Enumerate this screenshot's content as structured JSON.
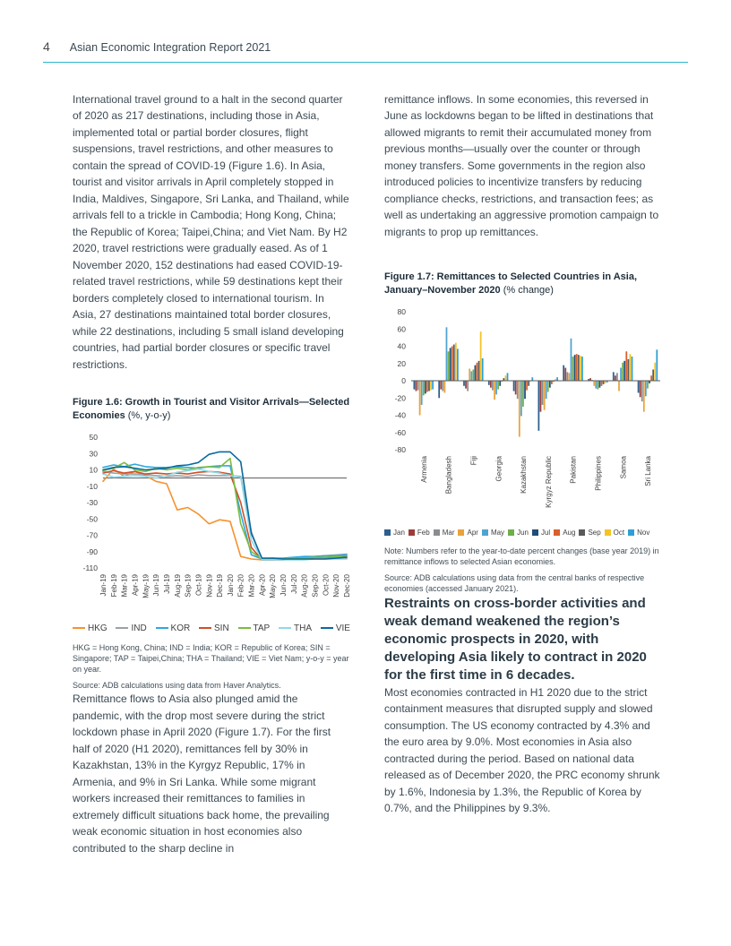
{
  "page": {
    "number": "4",
    "header_title": "Asian Economic Integration Report 2021",
    "accent_color": "#2cb6cf"
  },
  "left_column": {
    "para1": "International travel ground to a halt in the second quarter of 2020 as 217 destinations, including those in Asia, implemented total or partial border closures, flight suspensions, travel restrictions, and other measures to contain the spread of COVID-19 (Figure 1.6). In Asia, tourist and visitor arrivals in April completely stopped in India, Maldives, Singapore, Sri Lanka, and Thailand, while arrivals fell to a trickle in Cambodia; Hong Kong, China; the Republic of Korea; Taipei,China; and Viet Nam. By H2 2020, travel restrictions were gradually eased. As of 1 November 2020, 152 destinations had eased COVID-19-related travel restrictions, while 59 destinations kept their borders completely closed to international tourism. In Asia, 27 destinations maintained total border closures, while 22 destinations, including 5 small island developing countries, had partial border closures or specific travel restrictions.",
    "figure16": {
      "title_bold": "Figure 1.6: Growth in Tourist and Visitor Arrivals—Selected Economies",
      "title_note": " (%, y-o-y)",
      "footnote": "HKG = Hong Kong, China; IND = India; KOR = Republic of Korea; SIN = Singapore; TAP = Taipei,China; THA = Thailand; VIE = Viet Nam; y-o-y = year on year.",
      "source": "Source: ADB calculations using data from Haver Analytics."
    },
    "para2": "Remittance flows to Asia also plunged amid the pandemic, with the drop most severe during the strict lockdown phase in April 2020 (Figure 1.7). For the first half of 2020 (H1 2020), remittances fell by 30% in Kazakhstan, 13% in the Kyrgyz Republic, 17% in Armenia, and 9% in Sri Lanka. While some migrant workers increased their remittances to families in extremely difficult situations back home, the prevailing weak economic situation in host economies also contributed to the sharp decline in"
  },
  "right_column": {
    "para1": "remittance inflows. In some economies, this reversed in June as lockdowns began to be lifted in destinations that allowed migrants to remit their accumulated money from previous months—usually over the counter or through money transfers. Some governments in the region also introduced policies to incentivize transfers by reducing compliance checks, restrictions, and transaction fees; as well as undertaking an aggressive promotion campaign to migrants to prop up remittances.",
    "figure17": {
      "title_bold": "Figure 1.7: Remittances to Selected Countries in Asia, January–November 2020",
      "title_note": " (% change)",
      "note": "Note: Numbers refer to the year-to-date percent changes (base year 2019) in remittance inflows to selected Asian economies.",
      "source": "Source: ADB calculations using data from the central banks of respective economies (accessed January 2021)."
    },
    "heading": "Restraints on cross-border activities and weak demand weakened the region’s economic prospects in 2020, with developing Asia likely to contract in 2020 for the first time in 6 decades.",
    "para2": "Most economies contracted in H1 2020 due to the strict containment measures that disrupted supply and slowed consumption. The US economy contracted by 4.3% and the euro area by 9.0%. Most economies in Asia also contracted during the period. Based on national data released as of December 2020, the PRC economy shrunk by 1.6%, Indonesia by 1.3%, the Republic of Korea by 0.7%, and the Philippines by 9.3%."
  },
  "chart_data": [
    {
      "type": "line",
      "title": "Figure 1.6: Growth in Tourist and Visitor Arrivals—Selected Economies (%, y-o-y)",
      "xlabel": "",
      "ylabel": "",
      "ylim": [
        -110,
        50
      ],
      "ytick_step": 20,
      "grid": false,
      "legend_position": "bottom",
      "x": [
        "Jan-19",
        "Feb-19",
        "Mar-19",
        "Apr-19",
        "May-19",
        "Jun-19",
        "Jul-19",
        "Aug-19",
        "Sep-19",
        "Oct-19",
        "Nov-19",
        "Dec-19",
        "Jan-20",
        "Feb-20",
        "Mar-20",
        "Apr-20",
        "May-20",
        "Jun-20",
        "Jul-20",
        "Aug-20",
        "Sep-20",
        "Oct-20",
        "Nov-20",
        "Dec-20"
      ],
      "series": [
        {
          "name": "HKG",
          "color": "#f6912e",
          "values": [
            -4,
            11,
            2,
            8,
            3,
            -4,
            -7,
            -39,
            -36,
            -44,
            -56,
            -51,
            -53,
            -96,
            -99,
            -100,
            -100,
            -99,
            -99,
            -98,
            -98,
            -97,
            -96,
            -95
          ]
        },
        {
          "name": "IND",
          "color": "#9ca1a5",
          "values": [
            8,
            6,
            5,
            5,
            4,
            3,
            2,
            3,
            2,
            4,
            3,
            3,
            3,
            2,
            -66,
            -100,
            -100,
            -99,
            -98,
            -97,
            -96,
            -95,
            -94,
            -93
          ]
        },
        {
          "name": "KOR",
          "color": "#2fa8dc",
          "values": [
            13,
            16,
            14,
            17,
            14,
            13,
            13,
            14,
            13,
            12,
            14,
            15,
            15,
            -43,
            -94,
            -99,
            -98,
            -98,
            -97,
            -96,
            -96,
            -95,
            -95,
            -94
          ]
        },
        {
          "name": "SIN",
          "color": "#d14f28",
          "values": [
            6,
            9,
            6,
            8,
            5,
            6,
            5,
            6,
            5,
            7,
            8,
            7,
            5,
            -30,
            -85,
            -100,
            -100,
            -100,
            -99,
            -99,
            -98,
            -98,
            -98,
            -98
          ]
        },
        {
          "name": "TAP",
          "color": "#7abd42",
          "values": [
            9,
            12,
            19,
            10,
            8,
            12,
            10,
            12,
            10,
            13,
            14,
            13,
            24,
            -56,
            -90,
            -99,
            -99,
            -99,
            -98,
            -98,
            -97,
            -97,
            -96,
            -96
          ]
        },
        {
          "name": "THA",
          "color": "#8fd9e9",
          "values": [
            5,
            1,
            2,
            3,
            2,
            0,
            3,
            7,
            9,
            11,
            8,
            6,
            3,
            1,
            -76,
            -100,
            -100,
            -100,
            -100,
            -100,
            -99,
            -99,
            -99,
            -99
          ]
        },
        {
          "name": "VIE",
          "color": "#0a6a9e",
          "values": [
            10,
            13,
            14,
            12,
            10,
            11,
            12,
            15,
            16,
            19,
            29,
            32,
            32,
            20,
            -68,
            -98,
            -98,
            -99,
            -99,
            -99,
            -99,
            -99,
            -98,
            -97
          ]
        }
      ]
    },
    {
      "type": "bar",
      "title": "Figure 1.7: Remittances to Selected Countries in Asia, January–November 2020 (% change)",
      "xlabel": "",
      "ylabel": "",
      "ylim": [
        -80,
        80
      ],
      "ytick_step": 20,
      "grid": false,
      "legend_position": "bottom",
      "categories": [
        "Armenia",
        "Bangladesh",
        "Fiji",
        "Georgia",
        "Kazakhstan",
        "Kyrgyz Republic",
        "Pakistan",
        "Philippines",
        "Samoa",
        "Sri Lanka"
      ],
      "series": [
        {
          "name": "Jan",
          "color": "#2c5f8e",
          "values": [
            -10,
            -20,
            -6,
            -5,
            -12,
            -58,
            18,
            2,
            10,
            -14
          ]
        },
        {
          "name": "Feb",
          "color": "#9c3d39",
          "values": [
            -12,
            -10,
            -9,
            -8,
            -16,
            -36,
            15,
            3,
            6,
            -19
          ]
        },
        {
          "name": "Mar",
          "color": "#8a8d90",
          "values": [
            -11,
            -12,
            -12,
            -11,
            -21,
            -28,
            10,
            1,
            9,
            -24
          ]
        },
        {
          "name": "Apr",
          "color": "#e8a33c",
          "values": [
            -40,
            -14,
            14,
            -22,
            -65,
            -34,
            9,
            -6,
            -12,
            -36
          ]
        },
        {
          "name": "May",
          "color": "#4fa3d1",
          "values": [
            -28,
            62,
            11,
            -16,
            -41,
            -21,
            49,
            -9,
            15,
            -18
          ]
        },
        {
          "name": "Jun",
          "color": "#6fae4a",
          "values": [
            -17,
            34,
            13,
            -10,
            -30,
            -13,
            28,
            -10,
            21,
            -9
          ]
        },
        {
          "name": "Jul",
          "color": "#1f4e79",
          "values": [
            -15,
            38,
            18,
            -6,
            -21,
            -8,
            30,
            -8,
            23,
            -3
          ]
        },
        {
          "name": "Aug",
          "color": "#d95f2b",
          "values": [
            -13,
            40,
            21,
            -1,
            -11,
            -4,
            31,
            -6,
            34,
            6
          ]
        },
        {
          "name": "Sep",
          "color": "#5a5a5a",
          "values": [
            -12,
            42,
            23,
            3,
            -6,
            -1,
            30,
            -4,
            25,
            13
          ]
        },
        {
          "name": "Oct",
          "color": "#f5c324",
          "values": [
            -11,
            44,
            57,
            6,
            -1,
            2,
            29,
            -3,
            31,
            21
          ]
        },
        {
          "name": "Nov",
          "color": "#2e9fd4",
          "values": [
            -10,
            37,
            26,
            9,
            4,
            4,
            28,
            -2,
            28,
            36
          ]
        }
      ]
    }
  ]
}
